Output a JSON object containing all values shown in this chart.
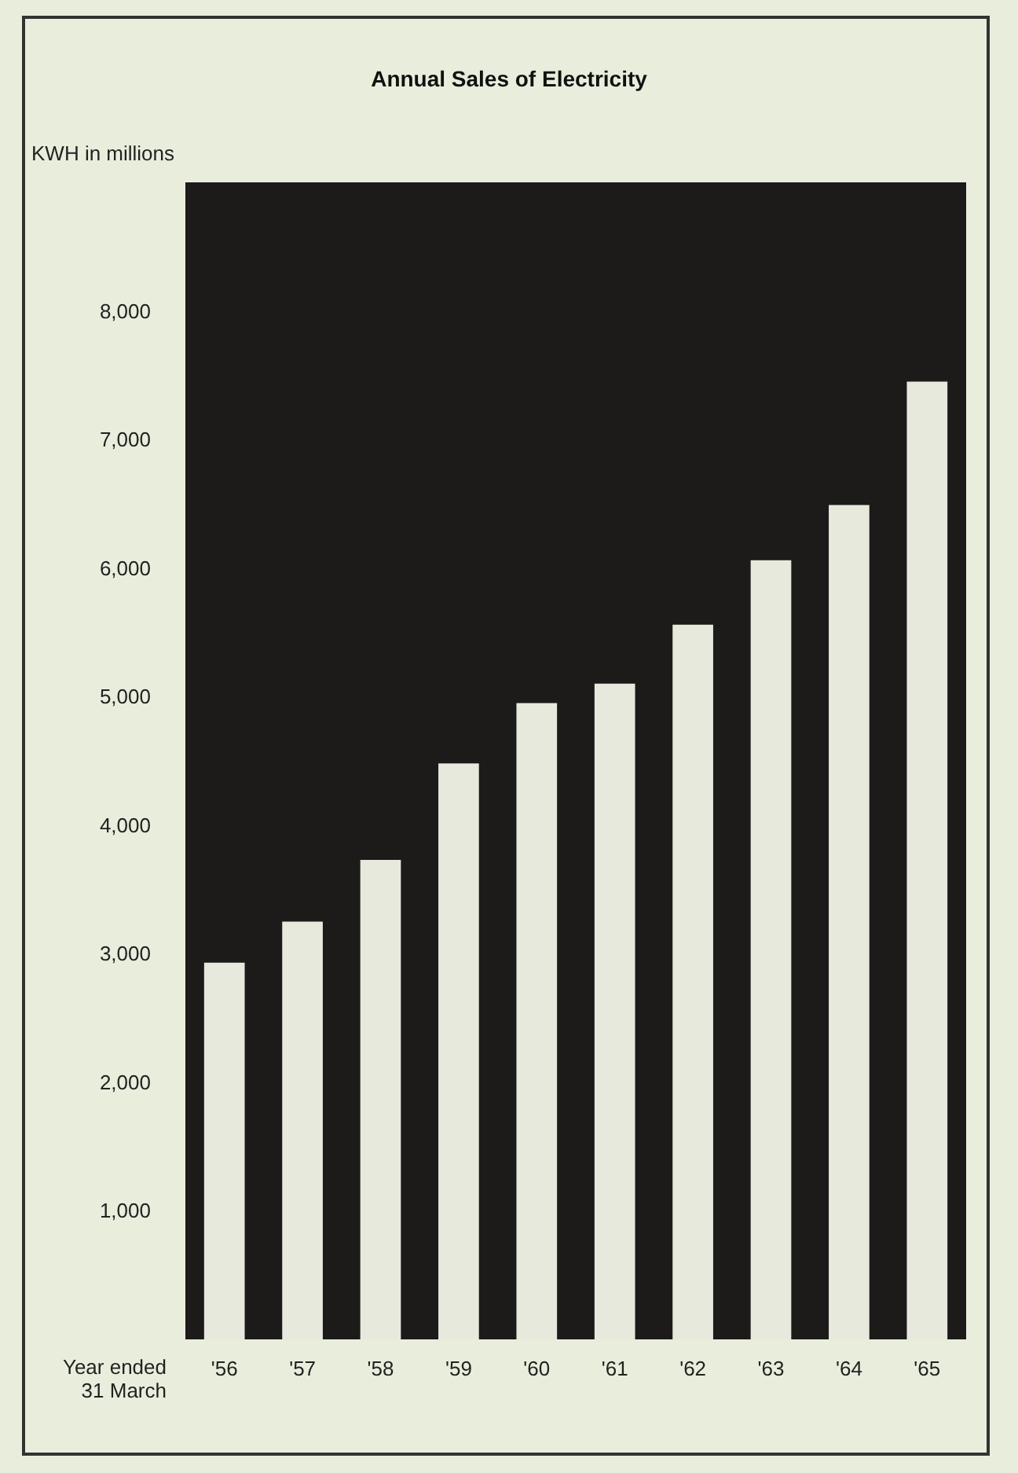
{
  "chart_data": {
    "type": "bar",
    "title": "Annual Sales of Electricity",
    "ylabel": "KWH in millions",
    "xlabel": "Year ended\n31 March",
    "categories": [
      "'56",
      "'57",
      "'58",
      "'59",
      "'60",
      "'61",
      "'62",
      "'63",
      "'64",
      "'65"
    ],
    "values": [
      2930,
      3250,
      3730,
      4480,
      4950,
      5100,
      5560,
      6060,
      6490,
      7450
    ],
    "color": "#e6e9dc",
    "ylim": [
      0,
      9000
    ],
    "yticks": [
      {
        "value": 1000,
        "label": "1,000"
      },
      {
        "value": 2000,
        "label": "2,000"
      },
      {
        "value": 3000,
        "label": "3,000"
      },
      {
        "value": 4000,
        "label": "4,000"
      },
      {
        "value": 5000,
        "label": "5,000"
      },
      {
        "value": 6000,
        "label": "6,000"
      },
      {
        "value": 7000,
        "label": "7,000"
      },
      {
        "value": 8000,
        "label": "8,000"
      }
    ],
    "grid": false
  }
}
